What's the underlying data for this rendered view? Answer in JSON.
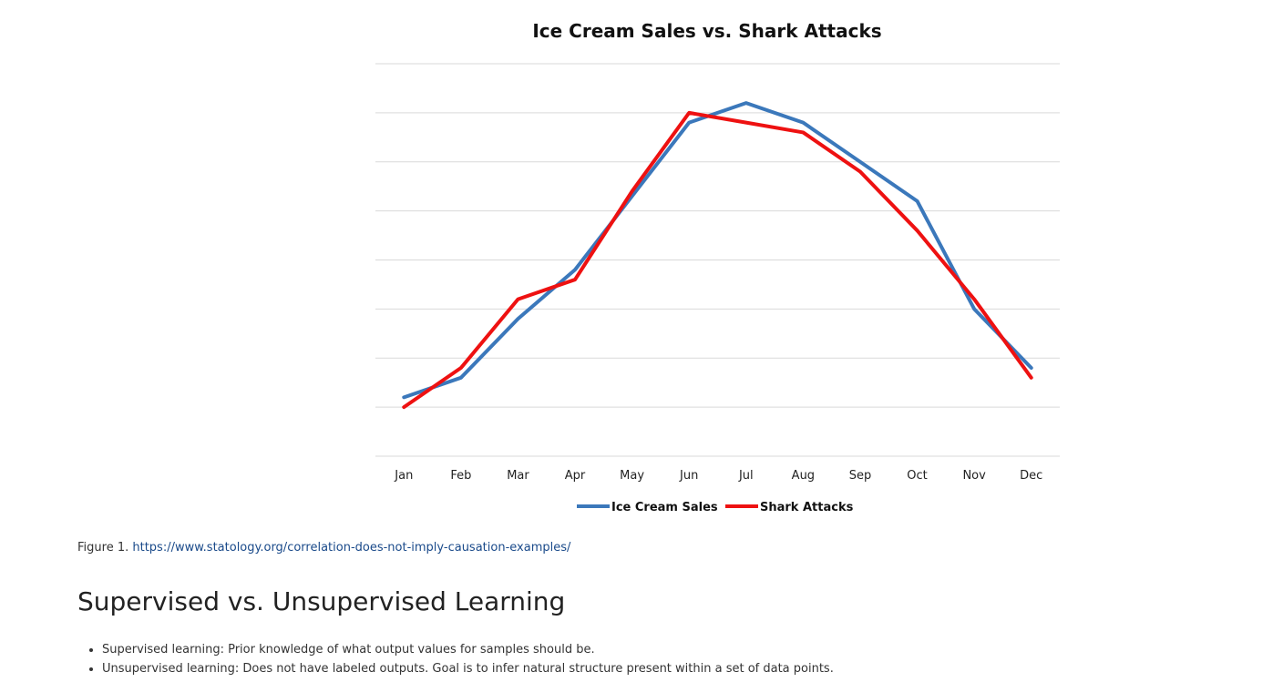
{
  "chart_data": {
    "type": "line",
    "title": "Ice Cream Sales vs. Shark Attacks",
    "xlabel": "",
    "ylabel": "",
    "categories": [
      "Jan",
      "Feb",
      "Mar",
      "Apr",
      "May",
      "Jun",
      "Jul",
      "Aug",
      "Sep",
      "Oct",
      "Nov",
      "Dec"
    ],
    "ylim": [
      0,
      8
    ],
    "grid": true,
    "legend_position": "bottom",
    "series": [
      {
        "name": "Ice Cream Sales",
        "color": "#3b78bb",
        "values": [
          1.2,
          1.6,
          2.8,
          3.8,
          5.3,
          6.8,
          7.2,
          6.8,
          6.0,
          5.2,
          3.0,
          1.8
        ]
      },
      {
        "name": "Shark Attacks",
        "color": "#ee1111",
        "values": [
          1.0,
          1.8,
          3.2,
          3.6,
          5.4,
          7.0,
          6.8,
          6.6,
          5.8,
          4.6,
          3.2,
          1.6
        ]
      }
    ]
  },
  "caption": {
    "prefix": "Figure 1. ",
    "link_text": "https://www.statology.org/correlation-does-not-imply-causation-examples/"
  },
  "section": {
    "heading": "Supervised vs. Unsupervised Learning",
    "bullets": [
      "Supervised learning: Prior knowledge of what output values for samples should be.",
      "Unsupervised learning: Does not have labeled outputs. Goal is to infer natural structure present within a set of data points."
    ]
  }
}
